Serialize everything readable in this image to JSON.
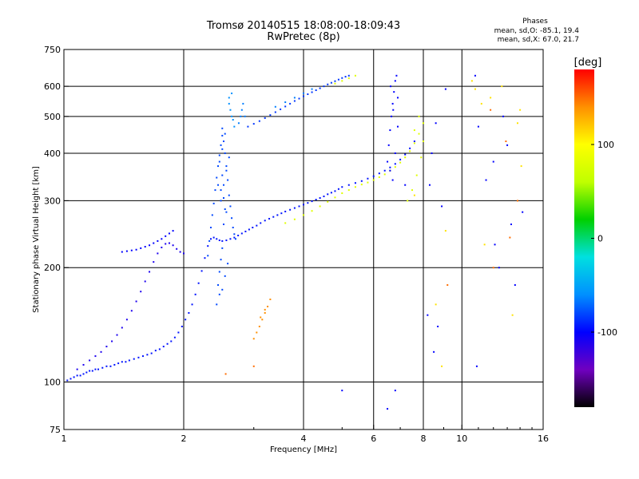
{
  "header": {
    "title": "Tromsø 20140515 18:08:00-18:09:43",
    "subtitle": "RwPretec (8p)"
  },
  "stats": {
    "heading": "Phases",
    "line_o": "mean, sd,O: -85.1, 19.4",
    "line_x": "mean, sd,X:  67.0, 21.7"
  },
  "chart_data": {
    "type": "scatter",
    "xlabel": "Frequency [MHz]",
    "ylabel": "Stationary phase Virtual Height [km]",
    "x_scale": "log",
    "y_scale": "log",
    "xlim": [
      1,
      16
    ],
    "ylim": [
      75,
      750
    ],
    "x_ticks": [
      1,
      2,
      4,
      6,
      8,
      10,
      16
    ],
    "x_tick_labels": [
      "1",
      "2",
      "4",
      "6",
      "8",
      "10",
      "16"
    ],
    "x_grid_lines": [
      2,
      4,
      6,
      8,
      10
    ],
    "y_ticks": [
      75,
      100,
      200,
      300,
      400,
      500,
      600,
      750
    ],
    "y_tick_labels": [
      "75",
      "100",
      "200",
      "300",
      "400",
      "500",
      "600",
      "750"
    ],
    "y_grid_lines": [
      100,
      200,
      300,
      400,
      500,
      600
    ],
    "grid": true,
    "colorbar": {
      "label": "[deg]",
      "range": [
        -180,
        180
      ],
      "ticks": [
        100,
        0,
        -100
      ],
      "tick_labels": [
        "100",
        "0",
        "-100"
      ],
      "colors": [
        "#000000",
        "#7000c0",
        "#0000ff",
        "#0090ff",
        "#00e0e0",
        "#00d000",
        "#c0ff00",
        "#ffff00",
        "#ff9000",
        "#ff0000"
      ]
    },
    "series": [
      {
        "name": "",
        "phase_deg": -95,
        "x": [
          1.02,
          1.04,
          1.06,
          1.08,
          1.1,
          1.12,
          1.14,
          1.16,
          1.18,
          1.2,
          1.22,
          1.25,
          1.28,
          1.31,
          1.34,
          1.37,
          1.4,
          1.43,
          1.46,
          1.5,
          1.54,
          1.58,
          1.62,
          1.66,
          1.7,
          1.74,
          1.78,
          1.82,
          1.86,
          1.9,
          1.94,
          1.98,
          2.02,
          2.06,
          2.1,
          2.14,
          2.18,
          2.22,
          2.26,
          2.3,
          2.34,
          2.38,
          2.42,
          2.46,
          2.5,
          2.56,
          2.62,
          2.68,
          2.74,
          2.8,
          2.86,
          2.92,
          2.98,
          3.05,
          3.12,
          3.2,
          3.28,
          3.36,
          3.44,
          3.52,
          3.6,
          3.7,
          3.8,
          3.9,
          4.0,
          4.1,
          4.2,
          4.3,
          4.4,
          4.5,
          4.6,
          4.7,
          4.8,
          4.9,
          5.0,
          5.2,
          5.4,
          5.6,
          5.8,
          6.0,
          6.2,
          6.4,
          6.6,
          6.8,
          7.0,
          7.2,
          7.4,
          7.6
        ],
        "y": [
          101,
          102,
          103,
          104,
          104,
          105,
          106,
          107,
          107,
          108,
          108,
          109,
          110,
          110,
          111,
          112,
          113,
          113,
          114,
          115,
          116,
          117,
          118,
          119,
          121,
          122,
          124,
          126,
          128,
          131,
          135,
          140,
          146,
          152,
          160,
          170,
          182,
          196,
          212,
          228,
          238,
          240,
          238,
          236,
          235,
          236,
          238,
          240,
          243,
          246,
          249,
          252,
          255,
          258,
          262,
          266,
          269,
          272,
          275,
          278,
          281,
          284,
          287,
          290,
          293,
          296,
          299,
          302,
          305,
          308,
          312,
          315,
          318,
          322,
          326,
          330,
          334,
          338,
          343,
          348,
          354,
          360,
          367,
          375,
          385,
          397,
          412,
          430
        ]
      },
      {
        "name": "",
        "phase_deg": -110,
        "x": [
          1.08,
          1.12,
          1.16,
          1.2,
          1.24,
          1.28,
          1.32,
          1.36,
          1.4,
          1.44,
          1.48,
          1.52,
          1.56,
          1.6,
          1.64,
          1.68,
          1.72,
          1.76,
          1.8,
          1.84,
          1.88,
          1.92,
          1.96,
          2.0
        ],
        "y": [
          108,
          111,
          114,
          117,
          120,
          124,
          128,
          133,
          139,
          146,
          154,
          163,
          173,
          184,
          195,
          207,
          218,
          226,
          231,
          232,
          229,
          224,
          220,
          218
        ]
      },
      {
        "name": "",
        "phase_deg": -100,
        "x": [
          1.4,
          1.44,
          1.48,
          1.52,
          1.56,
          1.6,
          1.64,
          1.68,
          1.72,
          1.76,
          1.8,
          1.84,
          1.88
        ],
        "y": [
          220,
          221,
          222,
          223,
          225,
          227,
          229,
          232,
          235,
          238,
          242,
          246,
          250
        ]
      },
      {
        "name": "",
        "phase_deg": -80,
        "x": [
          2.3,
          2.32,
          2.34,
          2.36,
          2.38,
          2.4,
          2.42,
          2.44,
          2.46,
          2.48,
          2.5,
          2.5,
          2.52,
          2.54,
          2.56,
          2.58,
          2.6,
          2.62,
          2.64,
          2.66,
          2.68,
          2.7,
          2.44,
          2.46,
          2.48,
          2.5,
          2.52,
          2.54,
          2.42,
          2.46,
          2.5,
          2.54,
          2.58,
          2.48,
          2.52,
          2.56,
          2.6,
          2.5,
          2.54,
          2.46,
          2.5,
          2.44,
          2.48,
          2.52,
          2.56
        ],
        "y": [
          215,
          235,
          255,
          275,
          295,
          320,
          345,
          370,
          395,
          420,
          445,
          465,
          430,
          400,
          370,
          340,
          310,
          290,
          270,
          255,
          245,
          238,
          180,
          195,
          210,
          225,
          260,
          285,
          160,
          170,
          175,
          190,
          205,
          300,
          330,
          360,
          390,
          410,
          450,
          380,
          350,
          330,
          320,
          305,
          280
        ]
      },
      {
        "name": "",
        "phase_deg": -85,
        "x": [
          2.9,
          3.0,
          3.1,
          3.2,
          3.3,
          3.4,
          3.5,
          3.6,
          3.7,
          3.8,
          3.9,
          4.0,
          4.1,
          4.2,
          4.3,
          4.4,
          4.5,
          4.6,
          4.7,
          4.8,
          4.9,
          5.0,
          5.1,
          5.2
        ],
        "y": [
          470,
          478,
          486,
          495,
          504,
          513,
          522,
          531,
          540,
          549,
          557,
          565,
          572,
          579,
          586,
          593,
          600,
          607,
          613,
          619,
          625,
          631,
          636,
          640
        ]
      },
      {
        "name": "",
        "phase_deg": -65,
        "x": [
          2.75,
          2.78,
          2.8,
          2.82,
          2.85,
          3.4,
          3.6,
          3.8,
          4.0,
          4.2
        ],
        "y": [
          480,
          500,
          520,
          540,
          500,
          530,
          545,
          560,
          575,
          590
        ]
      },
      {
        "name": "",
        "phase_deg": -60,
        "x": [
          2.6,
          2.62,
          2.64,
          2.66,
          2.6,
          2.64,
          2.68
        ],
        "y": [
          540,
          520,
          500,
          490,
          560,
          575,
          470
        ]
      },
      {
        "name": "",
        "phase_deg": 80,
        "x": [
          3.6,
          3.8,
          4.0,
          4.2,
          4.4,
          4.6,
          4.8,
          5.0,
          5.2,
          5.4,
          5.6,
          5.8,
          6.0,
          6.2,
          6.4,
          6.6,
          6.8,
          7.0,
          7.2,
          7.4,
          7.6,
          7.8,
          8.0
        ],
        "y": [
          262,
          268,
          275,
          282,
          290,
          298,
          306,
          314,
          320,
          326,
          331,
          335,
          340,
          346,
          352,
          360,
          368,
          378,
          390,
          405,
          425,
          450,
          480
        ]
      },
      {
        "name": "",
        "phase_deg": -100,
        "x": [
          6.5,
          6.55,
          6.6,
          6.65,
          6.7,
          6.75,
          6.8,
          6.85,
          6.9,
          6.6,
          6.7,
          6.8,
          6.9,
          6.62,
          6.72
        ],
        "y": [
          380,
          420,
          460,
          500,
          540,
          580,
          620,
          640,
          560,
          360,
          340,
          400,
          470,
          600,
          520
        ]
      },
      {
        "name": "",
        "phase_deg": 80,
        "x": [
          7.3,
          7.5,
          7.7,
          7.9,
          8.0,
          7.6,
          7.8,
          4.8,
          5.0,
          5.2,
          5.4
        ],
        "y": [
          300,
          320,
          350,
          390,
          430,
          460,
          500,
          610,
          620,
          630,
          640
        ]
      },
      {
        "name": "",
        "phase_deg": 140,
        "x": [
          3.0,
          3.05,
          3.1,
          3.15,
          3.2,
          3.25,
          3.3,
          3.12,
          3.2
        ],
        "y": [
          130,
          135,
          140,
          146,
          152,
          158,
          165,
          148,
          155
        ]
      },
      {
        "name": "",
        "phase_deg": -100,
        "x": [
          8.2,
          8.5,
          8.9,
          8.3,
          8.6,
          9.1,
          8.4,
          8.7,
          10.8,
          11.5,
          12.4,
          13.6,
          11.0,
          12.0,
          13.0,
          14.2,
          10.9,
          12.7,
          13.3,
          12.1,
          6.5,
          6.8,
          7.2,
          5.0
        ],
        "y": [
          150,
          120,
          290,
          330,
          480,
          590,
          400,
          140,
          640,
          340,
          200,
          180,
          470,
          380,
          420,
          280,
          110,
          500,
          260,
          230,
          85,
          95,
          330,
          95
        ]
      },
      {
        "name": "",
        "phase_deg": 110,
        "x": [
          10.6,
          11.2,
          11.8,
          12.6,
          13.8,
          14.0,
          11.4,
          10.8,
          13.4,
          14.1,
          8.6,
          8.9,
          9.1,
          7.6
        ],
        "y": [
          620,
          540,
          560,
          600,
          480,
          520,
          230,
          590,
          150,
          370,
          160,
          110,
          250,
          310
        ]
      },
      {
        "name": "",
        "phase_deg": 150,
        "x": [
          12.0,
          13.2,
          13.8,
          9.2,
          11.8,
          12.9,
          3.0,
          2.55
        ],
        "y": [
          200,
          240,
          300,
          180,
          520,
          430,
          110,
          105
        ]
      }
    ]
  }
}
